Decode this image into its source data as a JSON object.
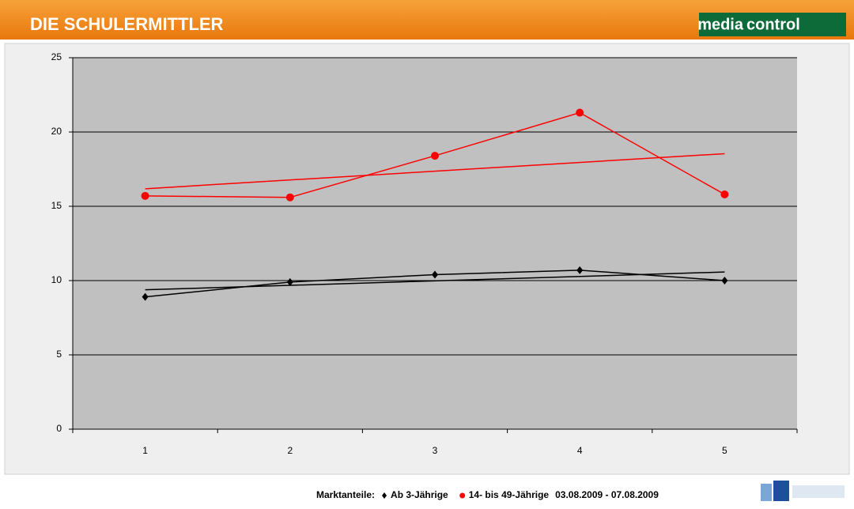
{
  "header": {
    "title": "DIE SCHULERMITTLER",
    "logo_left": "media",
    "logo_right": "control"
  },
  "chart_data": {
    "type": "line",
    "categories": [
      "1",
      "2",
      "3",
      "4",
      "5"
    ],
    "series": [
      {
        "name": "Ab 3-Jährige",
        "color": "#000000",
        "marker": "diamond",
        "values": [
          8.9,
          9.9,
          10.4,
          10.7,
          10.0
        ]
      },
      {
        "name": "14- bis 49-Jährige",
        "color": "#ff0000",
        "marker": "circle",
        "values": [
          15.7,
          15.6,
          18.4,
          21.3,
          15.8
        ]
      }
    ],
    "trendline": true,
    "ylim": [
      0,
      25
    ],
    "yticks": [
      0,
      5,
      10,
      15,
      20,
      25
    ],
    "grid": true,
    "legend_label": "Marktanteile:",
    "period": "03.08.2009 - 07.08.2009"
  }
}
